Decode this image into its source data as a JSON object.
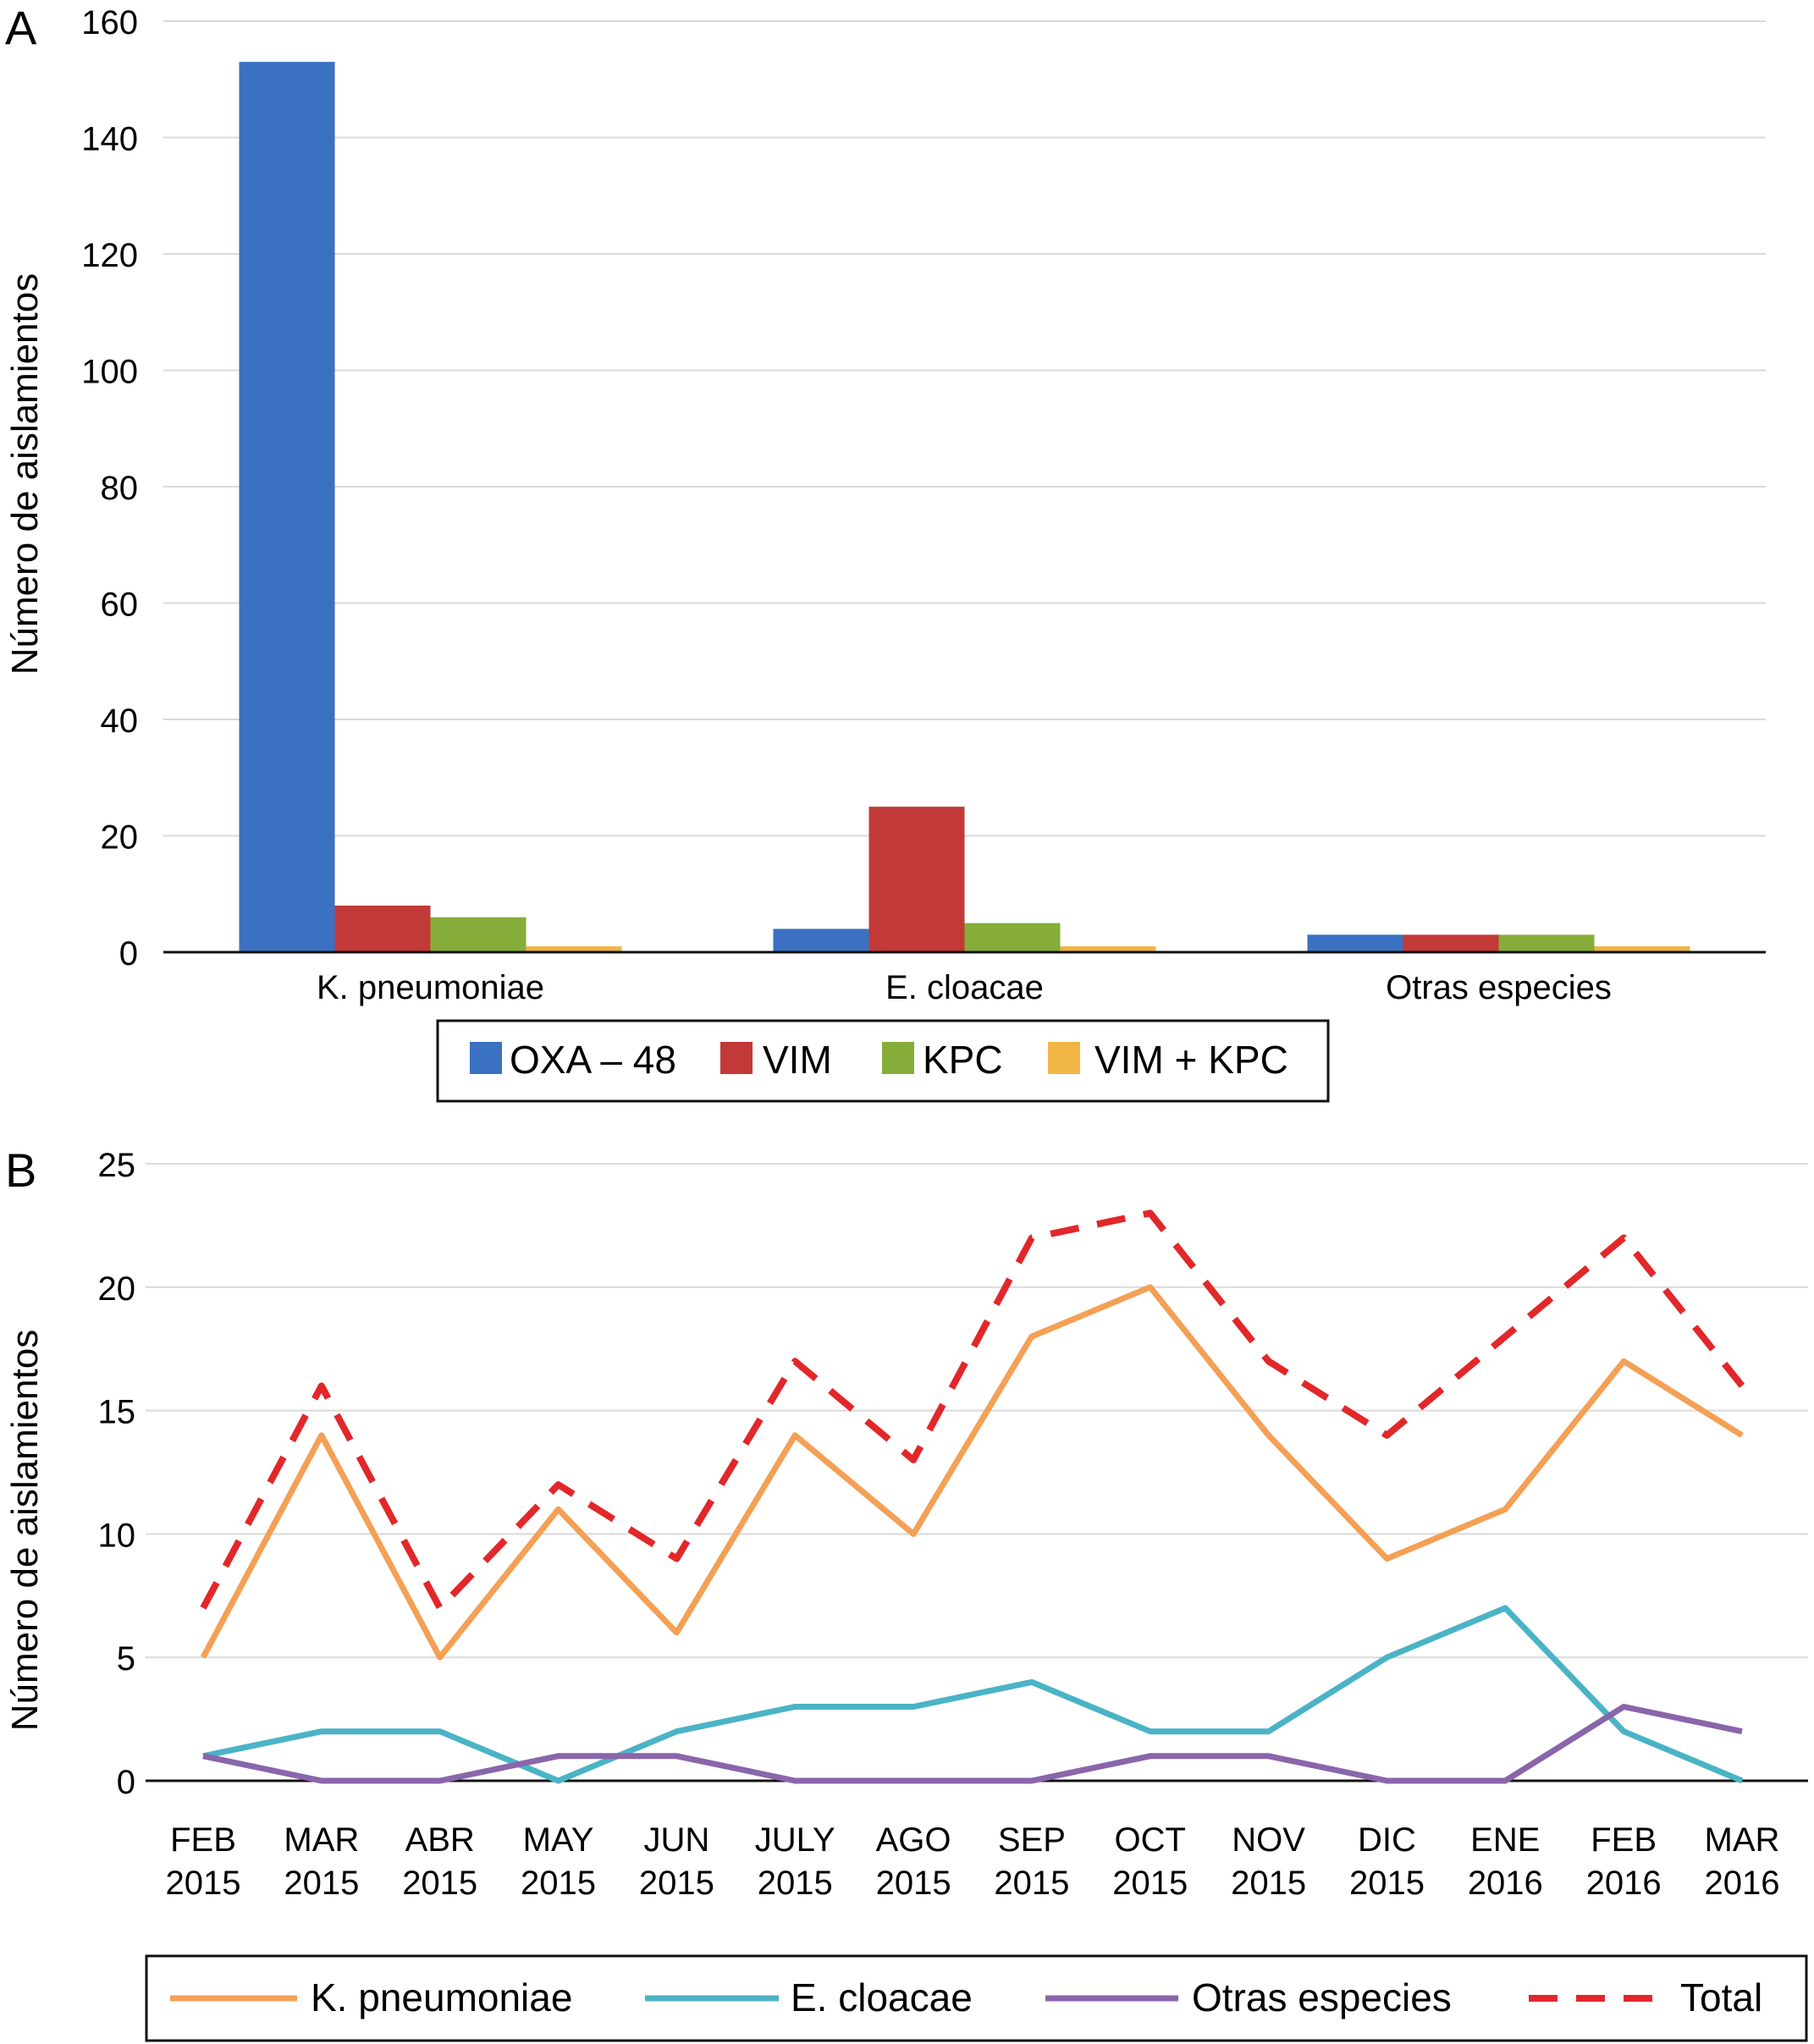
{
  "chart_data": [
    {
      "panel_label": "A",
      "type": "bar",
      "ylabel": "Número de aislamientos",
      "xlabel": "",
      "ylim": [
        0,
        160
      ],
      "yticks": [
        "0",
        "20",
        "40",
        "60",
        "80",
        "100",
        "120",
        "140",
        "160"
      ],
      "grid": true,
      "legend_position": "bottom",
      "categories": [
        "K. pneumoniae",
        "E. cloacae",
        "Otras especies"
      ],
      "series": [
        {
          "name": "OXA – 48",
          "color": "#3a71c1",
          "values": [
            153,
            4,
            3
          ]
        },
        {
          "name": "VIM",
          "color": "#c23a38",
          "values": [
            8,
            25,
            3
          ]
        },
        {
          "name": "KPC",
          "color": "#86ad3a",
          "values": [
            6,
            5,
            3
          ]
        },
        {
          "name": "VIM + KPC",
          "color": "#f0b544",
          "values": [
            1,
            1,
            1
          ]
        }
      ]
    },
    {
      "panel_label": "B",
      "type": "line",
      "ylabel": "Número de aislamientos",
      "xlabel": "",
      "ylim": [
        0,
        25
      ],
      "yticks": [
        "0",
        "5",
        "10",
        "15",
        "20",
        "25"
      ],
      "grid": true,
      "legend_position": "bottom",
      "categories": [
        [
          "FEB",
          "2015"
        ],
        [
          "MAR",
          "2015"
        ],
        [
          "ABR",
          "2015"
        ],
        [
          "MAY",
          "2015"
        ],
        [
          "JUN",
          "2015"
        ],
        [
          "JULY",
          "2015"
        ],
        [
          "AGO",
          "2015"
        ],
        [
          "SEP",
          "2015"
        ],
        [
          "OCT",
          "2015"
        ],
        [
          "NOV",
          "2015"
        ],
        [
          "DIC",
          "2015"
        ],
        [
          "ENE",
          "2016"
        ],
        [
          "FEB",
          "2016"
        ],
        [
          "MAR",
          "2016"
        ]
      ],
      "series": [
        {
          "name": "K. pneumoniae",
          "color": "#f4a055",
          "dashed": false,
          "values": [
            5,
            14,
            5,
            11,
            6,
            14,
            10,
            18,
            20,
            14,
            9,
            11,
            17,
            14
          ]
        },
        {
          "name": "E. cloacae",
          "color": "#4bb3c6",
          "dashed": false,
          "values": [
            1,
            2,
            2,
            0,
            2,
            3,
            3,
            4,
            2,
            2,
            5,
            7,
            2,
            0
          ]
        },
        {
          "name": "Otras especies",
          "color": "#8a65ab",
          "dashed": false,
          "values": [
            1,
            0,
            0,
            1,
            1,
            0,
            0,
            0,
            1,
            1,
            0,
            0,
            3,
            2
          ]
        },
        {
          "name": "Total",
          "color": "#e2272a",
          "dashed": true,
          "values": [
            7,
            16,
            7,
            12,
            9,
            17,
            13,
            22,
            23,
            17,
            14,
            18,
            22,
            16
          ]
        }
      ]
    }
  ]
}
